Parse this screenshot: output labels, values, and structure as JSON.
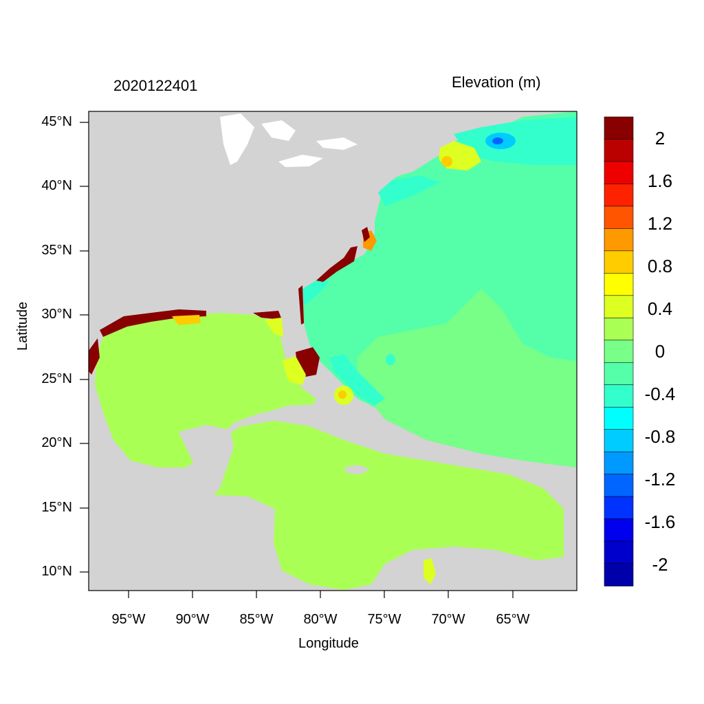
{
  "header": {
    "timestamp": "2020122401",
    "variable": "Elevation (m)"
  },
  "axes": {
    "xlabel": "Longitude",
    "ylabel": "Latitude",
    "xticks": [
      "95°W",
      "90°W",
      "85°W",
      "80°W",
      "75°W",
      "70°W",
      "65°W"
    ],
    "yticks": [
      "45°N",
      "40°N",
      "35°N",
      "30°N",
      "25°N",
      "20°N",
      "15°N",
      "10°N"
    ],
    "xrange_deg": [
      -98,
      -60
    ],
    "yrange_deg": [
      8.5,
      46
    ]
  },
  "colorbar": {
    "labels": [
      "2",
      "1.6",
      "1.2",
      "0.8",
      "0.4",
      "0",
      "-0.4",
      "-0.8",
      "-1.2",
      "-1.6",
      "-2"
    ],
    "colors": [
      "#880000",
      "#bb0000",
      "#ee0000",
      "#ff2200",
      "#ff5500",
      "#ff9900",
      "#ffcc00",
      "#ffff00",
      "#ddff22",
      "#aaff55",
      "#77ff88",
      "#55ffaa",
      "#33ffcc",
      "#00ffff",
      "#00ccff",
      "#0099ff",
      "#0066ff",
      "#0033ff",
      "#0000ee",
      "#0000cc",
      "#0000aa"
    ]
  },
  "colors": {
    "land": "#d3d3d3",
    "water_white": "#ffffff",
    "gulf": "#aaff55",
    "atlantic_south": "#77ff88",
    "atlantic_north": "#55ffaa",
    "coast_cyan": "#33ffcc",
    "surge_red": "#880000"
  }
}
